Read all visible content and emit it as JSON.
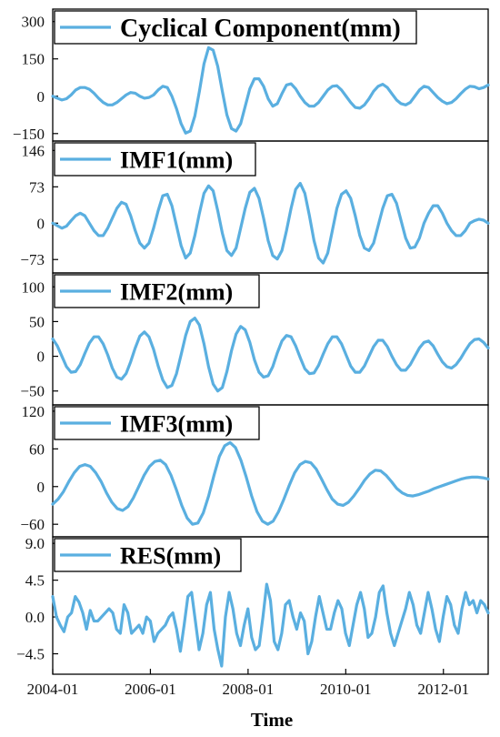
{
  "chart_data": {
    "type": "line",
    "xlabel": "Time",
    "x_ticks": [
      "2004-01",
      "2006-01",
      "2008-01",
      "2010-01",
      "2012-01"
    ],
    "x_range": [
      "2004-01",
      "2012-12"
    ],
    "line_color": "#5aafe0",
    "grid": false,
    "panels": [
      {
        "series": [
          {
            "name": "Cyclical Component(mm)",
            "values": [
              0,
              -8,
              -15,
              -10,
              5,
              25,
              35,
              35,
              28,
              12,
              -8,
              -25,
              -35,
              -35,
              -25,
              -10,
              5,
              15,
              12,
              0,
              -8,
              -5,
              5,
              25,
              40,
              35,
              0,
              -50,
              -110,
              -148,
              -140,
              -80,
              20,
              130,
              195,
              185,
              120,
              20,
              -75,
              -130,
              -140,
              -110,
              -40,
              30,
              70,
              70,
              40,
              -10,
              -40,
              -30,
              10,
              45,
              50,
              30,
              0,
              -25,
              -40,
              -40,
              -25,
              0,
              25,
              40,
              42,
              25,
              0,
              -25,
              -45,
              -48,
              -35,
              -10,
              20,
              40,
              48,
              35,
              10,
              -15,
              -30,
              -35,
              -25,
              0,
              25,
              40,
              35,
              15,
              -5,
              -20,
              -30,
              -25,
              -10,
              10,
              28,
              40,
              38,
              30,
              35,
              45
            ]
          }
        ],
        "yticks": [
          300,
          150,
          0,
          -150
        ],
        "ylim": [
          -180,
          350
        ]
      },
      {
        "series": [
          {
            "name": "IMF1(mm)",
            "values": [
              0,
              -5,
              -10,
              -6,
              5,
              15,
              20,
              15,
              0,
              -15,
              -25,
              -25,
              -10,
              10,
              30,
              42,
              38,
              15,
              -15,
              -40,
              -50,
              -40,
              -10,
              25,
              55,
              58,
              35,
              -5,
              -45,
              -70,
              -60,
              -25,
              20,
              60,
              75,
              65,
              25,
              -20,
              -55,
              -65,
              -50,
              -10,
              30,
              62,
              70,
              50,
              10,
              -35,
              -65,
              -72,
              -55,
              -15,
              30,
              68,
              80,
              60,
              15,
              -35,
              -70,
              -80,
              -60,
              -15,
              30,
              58,
              65,
              50,
              15,
              -25,
              -50,
              -55,
              -40,
              -5,
              30,
              55,
              58,
              40,
              5,
              -30,
              -50,
              -48,
              -30,
              0,
              20,
              35,
              35,
              20,
              0,
              -15,
              -25,
              -25,
              -15,
              0,
              5,
              8,
              6,
              0
            ]
          }
        ],
        "yticks": [
          146,
          73,
          0,
          -73
        ],
        "ylim": [
          -100,
          165
        ]
      },
      {
        "series": [
          {
            "name": "IMF2(mm)",
            "values": [
              25,
              15,
              0,
              -15,
              -23,
              -22,
              -12,
              4,
              19,
              28,
              28,
              18,
              2,
              -17,
              -30,
              -33,
              -25,
              -8,
              12,
              29,
              35,
              28,
              10,
              -14,
              -34,
              -45,
              -42,
              -25,
              2,
              30,
              50,
              55,
              45,
              18,
              -15,
              -40,
              -50,
              -45,
              -22,
              8,
              32,
              43,
              38,
              20,
              -5,
              -23,
              -30,
              -28,
              -15,
              5,
              22,
              30,
              28,
              15,
              -2,
              -18,
              -25,
              -24,
              -13,
              3,
              18,
              28,
              28,
              18,
              2,
              -14,
              -23,
              -23,
              -14,
              0,
              14,
              23,
              23,
              14,
              0,
              -12,
              -20,
              -20,
              -12,
              0,
              12,
              20,
              22,
              15,
              3,
              -8,
              -15,
              -17,
              -12,
              -3,
              8,
              18,
              24,
              25,
              20,
              12
            ]
          }
        ],
        "yticks": [
          100,
          50,
          0,
          -50
        ],
        "ylim": [
          -70,
          120
        ]
      },
      {
        "series": [
          {
            "name": "IMF3(mm)",
            "values": [
              -28,
              -20,
              -8,
              8,
              22,
              32,
              35,
              32,
              22,
              8,
              -10,
              -25,
              -35,
              -38,
              -32,
              -18,
              0,
              18,
              32,
              40,
              42,
              35,
              18,
              -5,
              -30,
              -50,
              -60,
              -58,
              -42,
              -15,
              18,
              48,
              65,
              70,
              62,
              42,
              15,
              -15,
              -40,
              -55,
              -60,
              -55,
              -40,
              -20,
              2,
              22,
              35,
              40,
              38,
              28,
              12,
              -5,
              -20,
              -28,
              -30,
              -25,
              -15,
              -3,
              10,
              20,
              26,
              25,
              18,
              8,
              -3,
              -10,
              -14,
              -15,
              -13,
              -10,
              -7,
              -3,
              0,
              3,
              6,
              9,
              12,
              14,
              15,
              15,
              14,
              12
            ]
          }
        ],
        "yticks": [
          120,
          60,
          0,
          -60
        ],
        "ylim": [
          -80,
          130
        ]
      },
      {
        "series": [
          {
            "name": "RES(mm)",
            "values": [
              2.5,
              0,
              -1,
              -1.8,
              0,
              0.5,
              2.5,
              1.8,
              0.5,
              -1.5,
              0.8,
              -0.5,
              -0.5,
              0,
              0.5,
              1,
              0.5,
              -1.5,
              -2,
              1.5,
              0.5,
              -2,
              -1.5,
              -1,
              -2,
              0,
              -0.5,
              -3,
              -2,
              -1.5,
              -1,
              0,
              0.5,
              -1.5,
              -4.2,
              -1,
              2.5,
              3,
              -0.5,
              -4,
              -2,
              1.5,
              3,
              -1.5,
              -4,
              -6,
              0,
              3,
              1,
              -2,
              -3.5,
              -1,
              1,
              -2.5,
              -4,
              -3.5,
              0,
              4,
              2,
              -3,
              -4,
              -2,
              1.5,
              2,
              0,
              -1.5,
              0.5,
              -0.5,
              -4.5,
              -3,
              0,
              2.5,
              0.5,
              -1.5,
              -1.5,
              0.5,
              2,
              1,
              -2,
              -3.5,
              -1,
              1.5,
              3,
              1,
              -2.5,
              -2,
              0,
              3,
              3.8,
              0.5,
              -2,
              -3.5,
              -2,
              -0.5,
              1,
              3,
              1.5,
              -1,
              -2,
              0.5,
              3,
              1,
              -1.5,
              -3,
              0,
              2.5,
              1.5,
              -1,
              -2,
              1,
              3,
              1.5,
              2,
              0.5,
              2,
              1.5,
              0.5
            ]
          }
        ],
        "yticks": [
          "9.0",
          "4.5",
          "0.0",
          "-4.5"
        ],
        "ylim": [
          -7,
          9.8
        ]
      }
    ]
  }
}
